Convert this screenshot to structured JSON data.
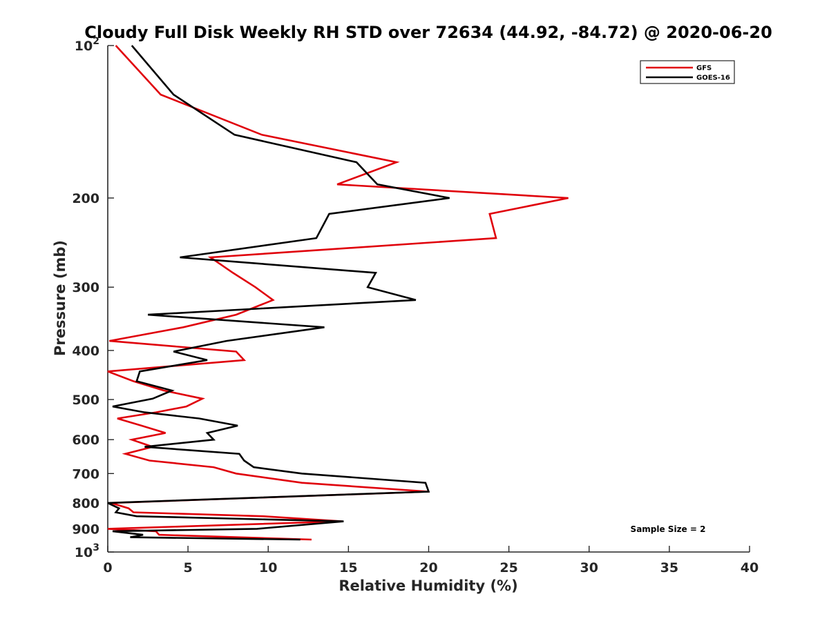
{
  "chart_data": {
    "type": "line",
    "title": "Cloudy Full Disk Weekly RH STD over 72634 (44.92, -84.72) @ 2020-06-20",
    "xlabel": "Relative Humidity (%)",
    "ylabel": "Pressure (mb)",
    "xlim": [
      0,
      40
    ],
    "ylim": [
      100,
      1000
    ],
    "yscale": "log",
    "y_reversed": true,
    "grid": false,
    "legend_position": "top-right",
    "x_ticks": [
      "0",
      "5",
      "10",
      "15",
      "20",
      "25",
      "30",
      "35",
      "40"
    ],
    "y_ticks": [
      {
        "value": 100,
        "base": "10",
        "exp": "2"
      },
      {
        "value": 200,
        "label": "200"
      },
      {
        "value": 300,
        "label": "300"
      },
      {
        "value": 400,
        "label": "400"
      },
      {
        "value": 500,
        "label": "500"
      },
      {
        "value": 600,
        "label": "600"
      },
      {
        "value": 700,
        "label": "700"
      },
      {
        "value": 800,
        "label": "800"
      },
      {
        "value": 900,
        "label": "900"
      },
      {
        "value": 1000,
        "base": "10",
        "exp": "3"
      }
    ],
    "annotation": "Sample Size = 2",
    "series": [
      {
        "name": "GFS",
        "color": "#e0000a",
        "points": [
          [
            0.5,
            100
          ],
          [
            3.3,
            125
          ],
          [
            9.6,
            150
          ],
          [
            18.0,
            170
          ],
          [
            14.3,
            188
          ],
          [
            28.7,
            200
          ],
          [
            23.8,
            215
          ],
          [
            24.2,
            240
          ],
          [
            6.4,
            262
          ],
          [
            7.8,
            281
          ],
          [
            9.2,
            300
          ],
          [
            10.3,
            318
          ],
          [
            8.0,
            340
          ],
          [
            4.7,
            360
          ],
          [
            0.1,
            383
          ],
          [
            8.0,
            402
          ],
          [
            8.5,
            418
          ],
          [
            0.0,
            440
          ],
          [
            1.6,
            460
          ],
          [
            3.5,
            480
          ],
          [
            5.9,
            498
          ],
          [
            4.9,
            516
          ],
          [
            3.0,
            530
          ],
          [
            0.6,
            545
          ],
          [
            2.1,
            563
          ],
          [
            3.6,
            582
          ],
          [
            1.5,
            600
          ],
          [
            2.8,
            620
          ],
          [
            1.1,
            640
          ],
          [
            2.6,
            660
          ],
          [
            6.6,
            680
          ],
          [
            8.0,
            700
          ],
          [
            12.1,
            730
          ],
          [
            20.0,
            760
          ],
          [
            0.2,
            800
          ],
          [
            1.3,
            820
          ],
          [
            1.6,
            835
          ],
          [
            9.7,
            850
          ],
          [
            14.6,
            870
          ],
          [
            0.0,
            900
          ],
          [
            3.0,
            910
          ],
          [
            3.2,
            925
          ],
          [
            12.7,
            945
          ]
        ]
      },
      {
        "name": "GOES-16",
        "color": "#000000",
        "points": [
          [
            1.5,
            100
          ],
          [
            4.1,
            125
          ],
          [
            7.9,
            150
          ],
          [
            15.5,
            170
          ],
          [
            16.8,
            188
          ],
          [
            21.3,
            200
          ],
          [
            13.8,
            215
          ],
          [
            13.0,
            240
          ],
          [
            4.5,
            262
          ],
          [
            16.7,
            281
          ],
          [
            16.2,
            300
          ],
          [
            19.2,
            318
          ],
          [
            2.5,
            340
          ],
          [
            13.5,
            360
          ],
          [
            7.4,
            383
          ],
          [
            4.1,
            402
          ],
          [
            6.2,
            418
          ],
          [
            2.0,
            440
          ],
          [
            1.8,
            460
          ],
          [
            4.0,
            480
          ],
          [
            2.8,
            498
          ],
          [
            0.3,
            516
          ],
          [
            2.3,
            530
          ],
          [
            5.7,
            545
          ],
          [
            8.1,
            563
          ],
          [
            6.2,
            582
          ],
          [
            6.6,
            600
          ],
          [
            2.3,
            620
          ],
          [
            8.2,
            640
          ],
          [
            8.5,
            660
          ],
          [
            9.1,
            680
          ],
          [
            12.1,
            700
          ],
          [
            19.8,
            730
          ],
          [
            20.0,
            760
          ],
          [
            0.0,
            800
          ],
          [
            0.7,
            820
          ],
          [
            0.5,
            835
          ],
          [
            1.8,
            850
          ],
          [
            14.7,
            870
          ],
          [
            9.3,
            900
          ],
          [
            0.3,
            910
          ],
          [
            2.2,
            925
          ],
          [
            1.4,
            935
          ],
          [
            12.0,
            945
          ]
        ]
      }
    ]
  }
}
